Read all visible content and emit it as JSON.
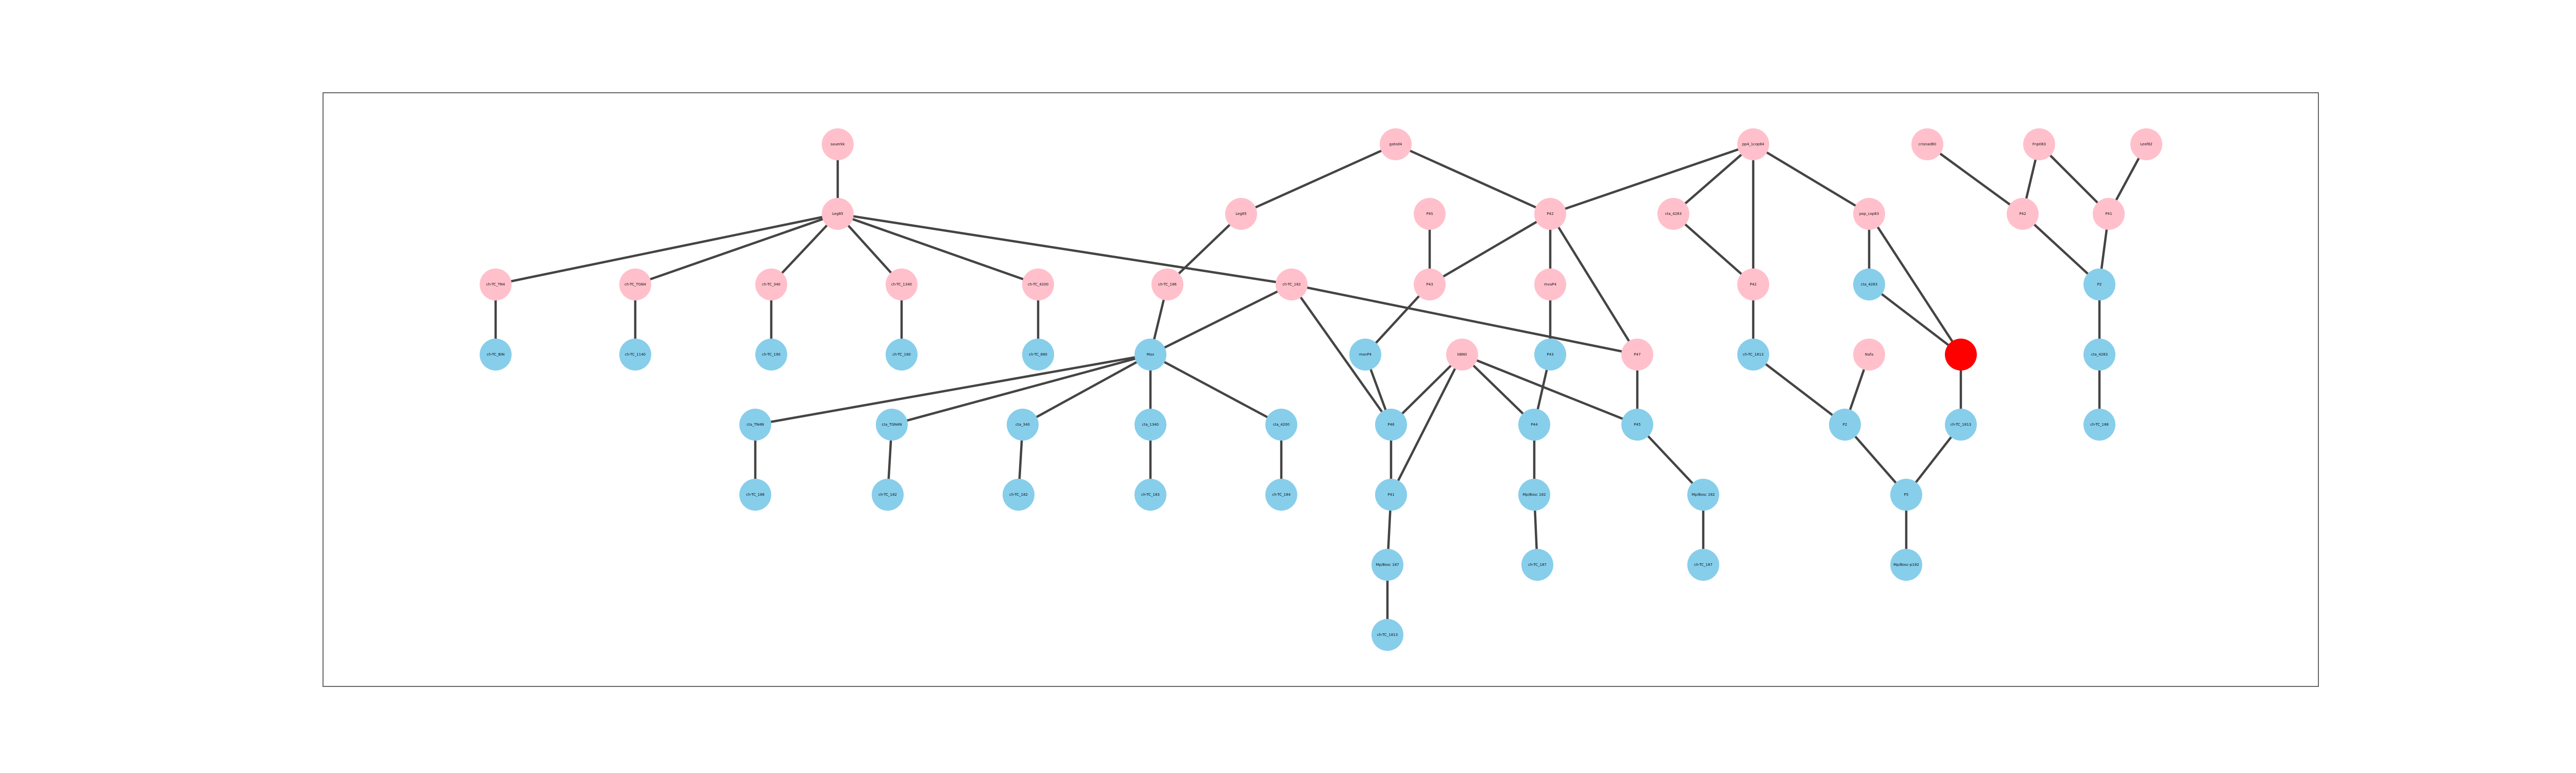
{
  "colors": {
    "pink": "#ffc0cb",
    "blue": "#87ceeb",
    "red": "#ff0000",
    "edge": "#444444",
    "frame": "#666666"
  },
  "nodes": [
    {
      "id": "n_top1",
      "label": "sauerkk",
      "color": "pink"
    },
    {
      "id": "n_hub",
      "label": "Leg85",
      "color": "pink"
    },
    {
      "id": "p1",
      "label": "ch-TC_TN4",
      "color": "pink"
    },
    {
      "id": "p2",
      "label": "ch-TC_TGN4",
      "color": "pink"
    },
    {
      "id": "p3",
      "label": "ch-TC_340",
      "color": "pink"
    },
    {
      "id": "p4",
      "label": "ch-TC_1340",
      "color": "pink"
    },
    {
      "id": "p5",
      "label": "ch-TC_4200",
      "color": "pink"
    },
    {
      "id": "p6",
      "label": "ch-TC_186",
      "color": "pink"
    },
    {
      "id": "p7",
      "label": "ch-TC_182",
      "color": "pink"
    },
    {
      "id": "b1",
      "label": "ch-TC_BIN",
      "color": "blue"
    },
    {
      "id": "b2",
      "label": "ch-TC_1140",
      "color": "blue"
    },
    {
      "id": "b3",
      "label": "ch-TC_190",
      "color": "blue"
    },
    {
      "id": "b4",
      "label": "ch-TC_180",
      "color": "blue"
    },
    {
      "id": "b5",
      "label": "ch-TC_880",
      "color": "blue"
    },
    {
      "id": "m_center",
      "label": "Max",
      "color": "blue"
    },
    {
      "id": "r1",
      "label": "cta_TN4N",
      "color": "blue"
    },
    {
      "id": "r2",
      "label": "cta_TGN4N",
      "color": "blue"
    },
    {
      "id": "r3",
      "label": "cta_340",
      "color": "blue"
    },
    {
      "id": "r4",
      "label": "cta_1340",
      "color": "blue"
    },
    {
      "id": "r5",
      "label": "cta_4200",
      "color": "blue"
    },
    {
      "id": "s1",
      "label": "ch-TC_188",
      "color": "blue"
    },
    {
      "id": "s2",
      "label": "ch-TC_182",
      "color": "blue"
    },
    {
      "id": "s3",
      "label": "ch-TC_182",
      "color": "blue"
    },
    {
      "id": "s4",
      "label": "ch-TC_183",
      "color": "blue"
    },
    {
      "id": "s5",
      "label": "ch-TC_184",
      "color": "blue"
    },
    {
      "id": "g_top",
      "label": "gatod4",
      "color": "pink"
    },
    {
      "id": "g_l",
      "label": "Leg85",
      "color": "pink"
    },
    {
      "id": "g_r",
      "label": "P42",
      "color": "pink"
    },
    {
      "id": "pk1",
      "label": "P4S",
      "color": "pink"
    },
    {
      "id": "pk2",
      "label": "P43",
      "color": "pink"
    },
    {
      "id": "pk3",
      "label": "mvaP4",
      "color": "pink"
    },
    {
      "id": "pk4",
      "label": "P47",
      "color": "pink"
    },
    {
      "id": "bl1",
      "label": "manP4",
      "color": "blue"
    },
    {
      "id": "bl2",
      "label": "P46",
      "color": "blue"
    },
    {
      "id": "bl3",
      "label": "P43",
      "color": "blue"
    },
    {
      "id": "bl4",
      "label": "P44",
      "color": "blue"
    },
    {
      "id": "bl5",
      "label": "P45",
      "color": "blue"
    },
    {
      "id": "bl6",
      "label": "P41",
      "color": "blue"
    },
    {
      "id": "bl7",
      "label": "Mp/Bosc 187",
      "color": "blue"
    },
    {
      "id": "bl8",
      "label": "Mp/Bosc 182",
      "color": "blue"
    },
    {
      "id": "bl9",
      "label": "Mp/Bosc 182",
      "color": "blue"
    },
    {
      "id": "bl10",
      "label": "ch-TC_1813",
      "color": "blue"
    },
    {
      "id": "bl11",
      "label": "ch-TC_187",
      "color": "blue"
    },
    {
      "id": "bl12",
      "label": "ch-TC_187",
      "color": "blue"
    },
    {
      "id": "pink_mid",
      "label": "kBN0",
      "color": "pink"
    },
    {
      "id": "rt_top",
      "label": "pp4_1cop84",
      "color": "pink"
    },
    {
      "id": "rt1",
      "label": "cta_4283",
      "color": "pink"
    },
    {
      "id": "rt2",
      "label": "P42",
      "color": "pink"
    },
    {
      "id": "rt3",
      "label": "pop_cop83",
      "color": "pink"
    },
    {
      "id": "rb1",
      "label": "ch-TC_1813",
      "color": "blue"
    },
    {
      "id": "rb2",
      "label": "cta_4283",
      "color": "blue"
    },
    {
      "id": "rp1",
      "label": "Nafa",
      "color": "pink"
    },
    {
      "id": "red",
      "label": "",
      "color": "red"
    },
    {
      "id": "rb3",
      "label": "P2",
      "color": "blue"
    },
    {
      "id": "rb4",
      "label": "ch-TC_1813",
      "color": "blue"
    },
    {
      "id": "rb5",
      "label": "P5",
      "color": "blue"
    },
    {
      "id": "rb6",
      "label": "Mp/Bosc-p182",
      "color": "blue"
    },
    {
      "id": "far1",
      "label": "crisnad80",
      "color": "pink"
    },
    {
      "id": "far2",
      "label": "Fnp083",
      "color": "pink"
    },
    {
      "id": "far3",
      "label": "Leof82",
      "color": "pink"
    },
    {
      "id": "far4",
      "label": "P42",
      "color": "pink"
    },
    {
      "id": "far5",
      "label": "P41",
      "color": "pink"
    },
    {
      "id": "farb1",
      "label": "P2",
      "color": "blue"
    },
    {
      "id": "farb2",
      "label": "cta_4283",
      "color": "blue"
    },
    {
      "id": "farb3",
      "label": "ch-TC_188",
      "color": "blue"
    }
  ],
  "edges": [
    [
      "n_top1",
      "n_hub"
    ],
    [
      "n_hub",
      "p1"
    ],
    [
      "n_hub",
      "p2"
    ],
    [
      "n_hub",
      "p3"
    ],
    [
      "n_hub",
      "p4"
    ],
    [
      "n_hub",
      "p5"
    ],
    [
      "n_hub",
      "p7"
    ],
    [
      "p1",
      "b1"
    ],
    [
      "p2",
      "b2"
    ],
    [
      "p3",
      "b3"
    ],
    [
      "p4",
      "b4"
    ],
    [
      "p5",
      "b5"
    ],
    [
      "p6",
      "m_center"
    ],
    [
      "p7",
      "m_center"
    ],
    [
      "m_center",
      "r1"
    ],
    [
      "m_center",
      "r2"
    ],
    [
      "m_center",
      "r3"
    ],
    [
      "m_center",
      "r4"
    ],
    [
      "m_center",
      "r5"
    ],
    [
      "r1",
      "s1"
    ],
    [
      "r2",
      "s2"
    ],
    [
      "r3",
      "s3"
    ],
    [
      "r4",
      "s4"
    ],
    [
      "r5",
      "s5"
    ],
    [
      "g_top",
      "g_l"
    ],
    [
      "g_top",
      "g_r"
    ],
    [
      "g_l",
      "p6"
    ],
    [
      "pk1",
      "pk2"
    ],
    [
      "g_r",
      "pk2"
    ],
    [
      "g_r",
      "pk3"
    ],
    [
      "g_r",
      "pk4"
    ],
    [
      "pk3",
      "bl3"
    ],
    [
      "pk2",
      "bl1"
    ],
    [
      "bl1",
      "bl2"
    ],
    [
      "p7",
      "bl2"
    ],
    [
      "p7",
      "pk4"
    ],
    [
      "bl3",
      "bl4"
    ],
    [
      "pink_mid",
      "bl4"
    ],
    [
      "pink_mid",
      "bl5"
    ],
    [
      "pink_mid",
      "bl6"
    ],
    [
      "pink_mid",
      "bl2"
    ],
    [
      "bl2",
      "bl6"
    ],
    [
      "bl6",
      "bl7"
    ],
    [
      "bl4",
      "bl8"
    ],
    [
      "bl5",
      "bl9"
    ],
    [
      "bl7",
      "bl10"
    ],
    [
      "bl8",
      "bl11"
    ],
    [
      "bl9",
      "bl12"
    ],
    [
      "pk4",
      "bl5"
    ],
    [
      "rt_top",
      "g_r"
    ],
    [
      "rt_top",
      "rt1"
    ],
    [
      "rt_top",
      "rt2"
    ],
    [
      "rt_top",
      "rt3"
    ],
    [
      "rt1",
      "rt2"
    ],
    [
      "rt2",
      "rb1"
    ],
    [
      "rt3",
      "rb2"
    ],
    [
      "rt3",
      "red"
    ],
    [
      "rb2",
      "red"
    ],
    [
      "rb1",
      "rb3"
    ],
    [
      "rp1",
      "rb3"
    ],
    [
      "rb3",
      "rb5"
    ],
    [
      "red",
      "rb4"
    ],
    [
      "rb4",
      "rb5"
    ],
    [
      "rb5",
      "rb6"
    ],
    [
      "far1",
      "far4"
    ],
    [
      "far2",
      "far4"
    ],
    [
      "far2",
      "far5"
    ],
    [
      "far3",
      "far5"
    ],
    [
      "far4",
      "farb1"
    ],
    [
      "far5",
      "farb1"
    ],
    [
      "farb1",
      "farb2"
    ],
    [
      "farb2",
      "farb3"
    ]
  ]
}
